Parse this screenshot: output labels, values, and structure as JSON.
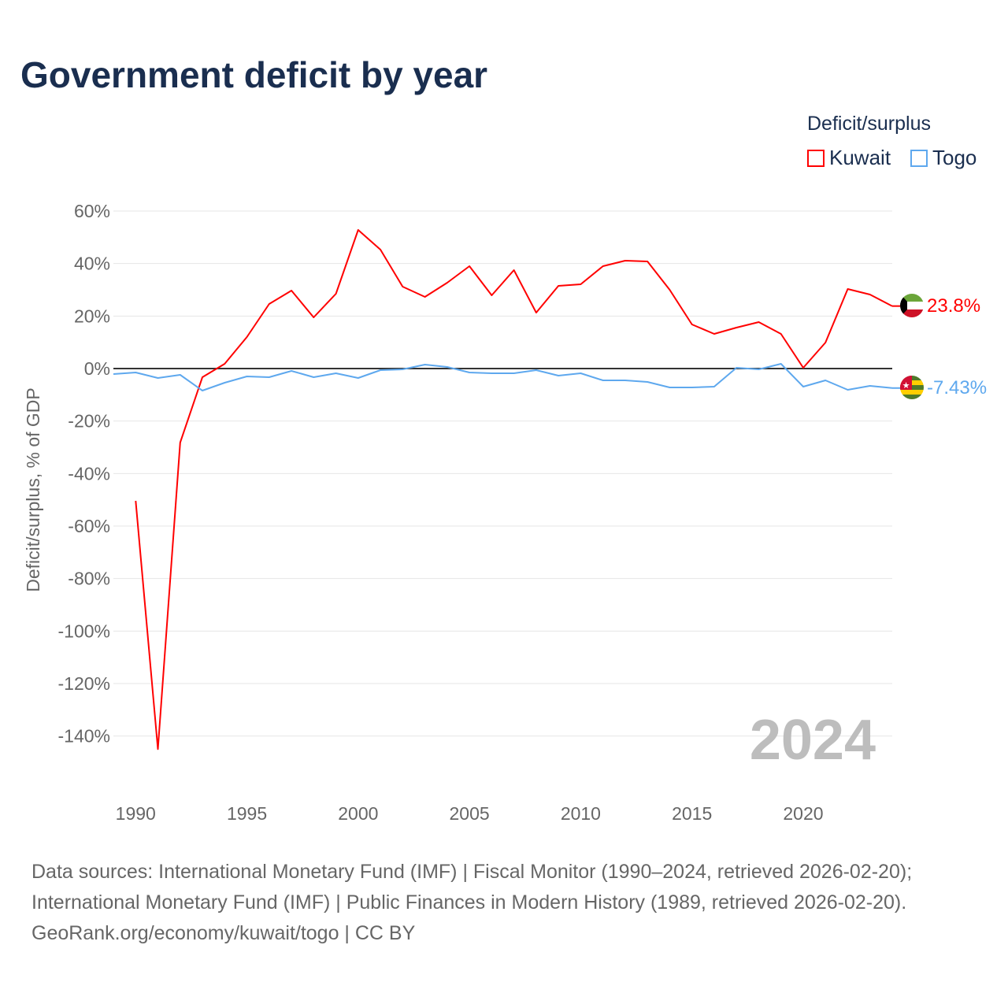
{
  "chart_data": {
    "type": "line",
    "title": "Government deficit by year",
    "xlabel": "",
    "ylabel": "Deficit/surplus, % of GDP",
    "xlim": [
      1989,
      2024
    ],
    "ylim": [
      -150,
      60
    ],
    "x_ticks": [
      1990,
      1995,
      2000,
      2005,
      2010,
      2015,
      2020
    ],
    "x_tick_labels": [
      "1990",
      "1995",
      "2000",
      "2005",
      "2010",
      "2015",
      "2020"
    ],
    "y_ticks": [
      60,
      40,
      20,
      0,
      -20,
      -40,
      -60,
      -80,
      -100,
      -120,
      -140
    ],
    "y_tick_labels": [
      "60%",
      "40%",
      "20%",
      "0%",
      "-20%",
      "-40%",
      "-60%",
      "-80%",
      "-100%",
      "-120%",
      "-140%"
    ],
    "grid": true,
    "legend": {
      "title": "Deficit/surplus",
      "placement": "top-right"
    },
    "year_label": "2024",
    "series": [
      {
        "name": "Kuwait",
        "color": "#ff0000",
        "end_label": "23.8%",
        "x": [
          1990,
          1991,
          1992,
          1993,
          1994,
          1995,
          1996,
          1997,
          1998,
          1999,
          2000,
          2001,
          2002,
          2003,
          2004,
          2005,
          2006,
          2007,
          2008,
          2009,
          2010,
          2011,
          2012,
          2013,
          2014,
          2015,
          2016,
          2017,
          2018,
          2019,
          2020,
          2021,
          2022,
          2023,
          2024
        ],
        "values": [
          -50.4,
          -145,
          -28.2,
          -3.3,
          1.8,
          12,
          24.6,
          29.7,
          19.5,
          28.5,
          52.8,
          45.3,
          31.2,
          27.3,
          32.7,
          39,
          27.9,
          37.5,
          21.3,
          31.5,
          32.1,
          39,
          41.1,
          40.8,
          30,
          16.8,
          13.2,
          15.6,
          17.7,
          13.2,
          0.3,
          9.9,
          30.3,
          28.2,
          23.8
        ]
      },
      {
        "name": "Togo",
        "color": "#5ea8ee",
        "end_label": "-7.43%",
        "x": [
          1989,
          1990,
          1991,
          1992,
          1993,
          1994,
          1995,
          1996,
          1997,
          1998,
          1999,
          2000,
          2001,
          2002,
          2003,
          2004,
          2005,
          2006,
          2007,
          2008,
          2009,
          2010,
          2011,
          2012,
          2013,
          2014,
          2015,
          2016,
          2017,
          2018,
          2019,
          2020,
          2021,
          2022,
          2023,
          2024
        ],
        "values": [
          -2.1,
          -1.5,
          -3.6,
          -2.4,
          -8.4,
          -5.4,
          -3,
          -3.3,
          -0.9,
          -3.3,
          -1.8,
          -3.6,
          -0.6,
          -0.3,
          1.5,
          0.6,
          -1.5,
          -1.8,
          -1.8,
          -0.6,
          -2.7,
          -1.8,
          -4.5,
          -4.5,
          -5.1,
          -7.2,
          -7.2,
          -6.9,
          0.3,
          -0.3,
          1.8,
          -6.9,
          -4.5,
          -8.1,
          -6.6,
          -7.43
        ]
      }
    ]
  },
  "sources": {
    "line1": "Data sources: International Monetary Fund (IMF) | Fiscal Monitor (1990–2024, retrieved 2026-02-20);",
    "line2": "International Monetary Fund (IMF) | Public Finances in Modern History (1989, retrieved 2026-02-20).",
    "line3": "GeoRank.org/economy/kuwait/togo | CC BY"
  }
}
